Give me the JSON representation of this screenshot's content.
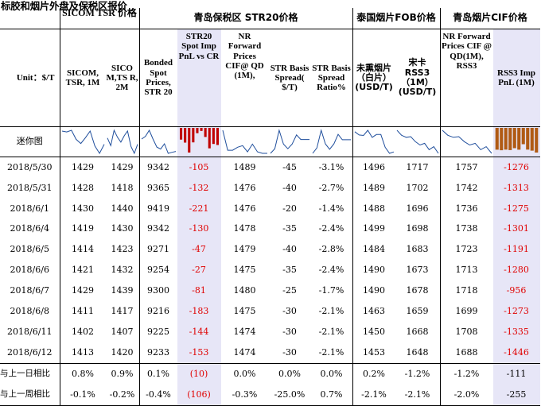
{
  "title": "标胶和烟片外盘及保税区报价",
  "groups": {
    "sicom": "SICOM TSR 价格",
    "qingdao_str20": "青岛保税区 STR20价格",
    "thai_fob": "泰国烟片FOB价格",
    "qingdao_cif": "青岛烟片CIF价格"
  },
  "headers": {
    "unit": "Unit：$/T",
    "c1": "SICOM, TSR, 1M",
    "c2": "SICO M,TS R, 2M",
    "c3": "Bonded Spot Prices, STR 20",
    "c4": "STR20 Spot Imp PnL vs CR",
    "c5": "NR Forward Prices CIF@ QD (1M),",
    "c6": "STR Basis Spread( $/T)",
    "c7": "STR Basis Spread Ratio%",
    "c8": "未熏烟片（白片）(USD/T)",
    "c9": "宋卡 RSS3 （1M）(USD/T)",
    "c10": "NR Forward Prices CIF @ QD(1M), RSS3",
    "c11": "RSS3 Imp PnL (1M)"
  },
  "mini_label": "迷你图",
  "rows": [
    [
      "2018/5/30",
      "1429",
      "1429",
      "9342",
      "-105",
      "1489",
      "-45",
      "-3.1%",
      "1496",
      "1717",
      "1757",
      "-1276"
    ],
    [
      "2018/5/31",
      "1428",
      "1418",
      "9365",
      "-132",
      "1476",
      "-40",
      "-2.7%",
      "1489",
      "1702",
      "1742",
      "-1313"
    ],
    [
      "2018/6/1",
      "1430",
      "1440",
      "9419",
      "-221",
      "1476",
      "-20",
      "-1.4%",
      "1488",
      "1696",
      "1736",
      "-1275"
    ],
    [
      "2018/6/4",
      "1419",
      "1430",
      "9342",
      "-130",
      "1478",
      "-35",
      "-2.4%",
      "1499",
      "1698",
      "1738",
      "-1301"
    ],
    [
      "2018/6/5",
      "1414",
      "1423",
      "9271",
      "-47",
      "1479",
      "-40",
      "-2.8%",
      "1484",
      "1683",
      "1723",
      "-1191"
    ],
    [
      "2018/6/6",
      "1421",
      "1432",
      "9254",
      "-27",
      "1475",
      "-35",
      "-2.4%",
      "1490",
      "1673",
      "1713",
      "-1280"
    ],
    [
      "2018/6/7",
      "1429",
      "1439",
      "9300",
      "-81",
      "1480",
      "-25",
      "-1.7%",
      "1490",
      "1678",
      "1718",
      "-956"
    ],
    [
      "2018/6/8",
      "1411",
      "1417",
      "9216",
      "-183",
      "1475",
      "-30",
      "-2.1%",
      "1463",
      "1659",
      "1699",
      "-1273"
    ],
    [
      "2018/6/11",
      "1402",
      "1407",
      "9225",
      "-144",
      "1474",
      "-30",
      "-2.1%",
      "1450",
      "1668",
      "1708",
      "-1335"
    ],
    [
      "2018/6/12",
      "1413",
      "1420",
      "9233",
      "-153",
      "1474",
      "-30",
      "-2.1%",
      "1453",
      "1648",
      "1688",
      "-1446"
    ]
  ],
  "summary": [
    [
      "与上一日相比",
      "0.8%",
      "0.9%",
      "0.1%",
      "(10)",
      "0.0%",
      "0.0%",
      "0.0%",
      "0.2%",
      "-1.2%",
      "-1.2%",
      "-111"
    ],
    [
      "与上一周相比",
      "-0.1%",
      "-0.2%",
      "-0.4%",
      "(106)",
      "-0.3%",
      "-25.0%",
      "0.7%",
      "-2.1%",
      "-2.1%",
      "-2.0%",
      "-255"
    ]
  ],
  "colors": {
    "highlight": "#e7e6f7",
    "negative": "#e00000",
    "bar_red": "#c00000",
    "bar_brown": "#b05a14",
    "line": "#1f4e9c"
  }
}
